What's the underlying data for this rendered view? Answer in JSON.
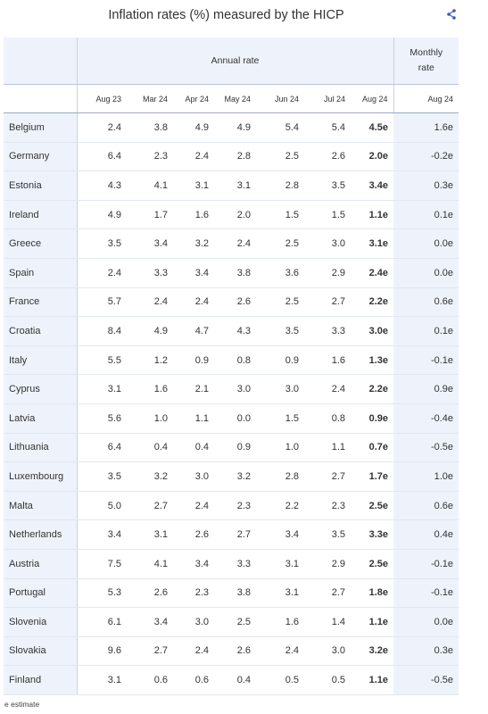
{
  "title": "Inflation rates (%) measured by the HICP",
  "share_icon": "share-icon",
  "header": {
    "annual_label": "Annual rate",
    "monthly_label_1": "Monthly",
    "monthly_label_2": "rate",
    "columns": [
      "Aug 23",
      "Mar 24",
      "Apr 24",
      "May 24",
      "Jun 24",
      "Jul 24",
      "Aug 24"
    ],
    "monthly_column": "Aug 24"
  },
  "rows": [
    {
      "country": "Belgium",
      "v": [
        "2.4",
        "3.8",
        "4.9",
        "4.9",
        "5.4",
        "5.4",
        "4.5e"
      ],
      "m": "1.6e"
    },
    {
      "country": "Germany",
      "v": [
        "6.4",
        "2.3",
        "2.4",
        "2.8",
        "2.5",
        "2.6",
        "2.0e"
      ],
      "m": "-0.2e"
    },
    {
      "country": "Estonia",
      "v": [
        "4.3",
        "4.1",
        "3.1",
        "3.1",
        "2.8",
        "3.5",
        "3.4e"
      ],
      "m": "0.3e"
    },
    {
      "country": "Ireland",
      "v": [
        "4.9",
        "1.7",
        "1.6",
        "2.0",
        "1.5",
        "1.5",
        "1.1e"
      ],
      "m": "0.1e"
    },
    {
      "country": "Greece",
      "v": [
        "3.5",
        "3.4",
        "3.2",
        "2.4",
        "2.5",
        "3.0",
        "3.1e"
      ],
      "m": "0.0e"
    },
    {
      "country": "Spain",
      "v": [
        "2.4",
        "3.3",
        "3.4",
        "3.8",
        "3.6",
        "2.9",
        "2.4e"
      ],
      "m": "0.0e"
    },
    {
      "country": "France",
      "v": [
        "5.7",
        "2.4",
        "2.4",
        "2.6",
        "2.5",
        "2.7",
        "2.2e"
      ],
      "m": "0.6e"
    },
    {
      "country": "Croatia",
      "v": [
        "8.4",
        "4.9",
        "4.7",
        "4.3",
        "3.5",
        "3.3",
        "3.0e"
      ],
      "m": "0.1e"
    },
    {
      "country": "Italy",
      "v": [
        "5.5",
        "1.2",
        "0.9",
        "0.8",
        "0.9",
        "1.6",
        "1.3e"
      ],
      "m": "-0.1e"
    },
    {
      "country": "Cyprus",
      "v": [
        "3.1",
        "1.6",
        "2.1",
        "3.0",
        "3.0",
        "2.4",
        "2.2e"
      ],
      "m": "0.9e"
    },
    {
      "country": "Latvia",
      "v": [
        "5.6",
        "1.0",
        "1.1",
        "0.0",
        "1.5",
        "0.8",
        "0.9e"
      ],
      "m": "-0.4e"
    },
    {
      "country": "Lithuania",
      "v": [
        "6.4",
        "0.4",
        "0.4",
        "0.9",
        "1.0",
        "1.1",
        "0.7e"
      ],
      "m": "-0.5e"
    },
    {
      "country": "Luxembourg",
      "v": [
        "3.5",
        "3.2",
        "3.0",
        "3.2",
        "2.8",
        "2.7",
        "1.7e"
      ],
      "m": "1.0e"
    },
    {
      "country": "Malta",
      "v": [
        "5.0",
        "2.7",
        "2.4",
        "2.3",
        "2.2",
        "2.3",
        "2.5e"
      ],
      "m": "0.6e"
    },
    {
      "country": "Netherlands",
      "v": [
        "3.4",
        "3.1",
        "2.6",
        "2.7",
        "3.4",
        "3.5",
        "3.3e"
      ],
      "m": "0.4e"
    },
    {
      "country": "Austria",
      "v": [
        "7.5",
        "4.1",
        "3.4",
        "3.3",
        "3.1",
        "2.9",
        "2.5e"
      ],
      "m": "-0.1e"
    },
    {
      "country": "Portugal",
      "v": [
        "5.3",
        "2.6",
        "2.3",
        "3.8",
        "3.1",
        "2.7",
        "1.8e"
      ],
      "m": "-0.1e"
    },
    {
      "country": "Slovenia",
      "v": [
        "6.1",
        "3.4",
        "3.0",
        "2.5",
        "1.6",
        "1.4",
        "1.1e"
      ],
      "m": "0.0e"
    },
    {
      "country": "Slovakia",
      "v": [
        "9.6",
        "2.7",
        "2.4",
        "2.6",
        "2.4",
        "3.0",
        "3.2e"
      ],
      "m": "0.3e"
    },
    {
      "country": "Finland",
      "v": [
        "3.1",
        "0.6",
        "0.6",
        "0.4",
        "0.5",
        "0.5",
        "1.1e"
      ],
      "m": "-0.5e"
    }
  ],
  "footnote": "e estimate"
}
